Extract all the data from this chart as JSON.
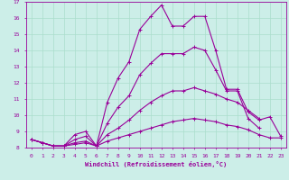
{
  "xlabel": "Windchill (Refroidissement éolien,°C)",
  "xlim": [
    -0.5,
    23.5
  ],
  "ylim": [
    8,
    17
  ],
  "yticks": [
    8,
    9,
    10,
    11,
    12,
    13,
    14,
    15,
    16,
    17
  ],
  "xticks": [
    0,
    1,
    2,
    3,
    4,
    5,
    6,
    7,
    8,
    9,
    10,
    11,
    12,
    13,
    14,
    15,
    16,
    17,
    18,
    19,
    20,
    21,
    22,
    23
  ],
  "bg_color": "#cceee8",
  "line_color": "#990099",
  "grid_color": "#aaddcc",
  "curves": [
    {
      "x": [
        0,
        1,
        2,
        3,
        4,
        5,
        6,
        7,
        8,
        9,
        10,
        11,
        12,
        13,
        14,
        15,
        16,
        17,
        18,
        19,
        20,
        21,
        22,
        23
      ],
      "y": [
        8.5,
        8.3,
        8.1,
        8.1,
        8.8,
        9.0,
        8.1,
        10.8,
        12.3,
        13.3,
        15.3,
        16.1,
        16.8,
        15.5,
        15.5,
        16.1,
        16.1,
        14.0,
        11.6,
        11.6,
        10.2,
        9.7,
        9.9,
        8.7
      ]
    },
    {
      "x": [
        0,
        1,
        2,
        3,
        4,
        5,
        6,
        7,
        8,
        9,
        10,
        11,
        12,
        13,
        14,
        15,
        16,
        17,
        18,
        19,
        20,
        21
      ],
      "y": [
        8.5,
        8.3,
        8.1,
        8.1,
        8.5,
        8.7,
        8.1,
        9.5,
        10.5,
        11.2,
        12.5,
        13.2,
        13.8,
        13.8,
        13.8,
        14.2,
        14.0,
        12.8,
        11.5,
        11.5,
        9.8,
        9.2
      ]
    },
    {
      "x": [
        0,
        1,
        2,
        3,
        4,
        5,
        6,
        7,
        8,
        9,
        10,
        11,
        12,
        13,
        14,
        15,
        16,
        17,
        18,
        19,
        20,
        21
      ],
      "y": [
        8.5,
        8.3,
        8.1,
        8.1,
        8.3,
        8.4,
        8.1,
        8.8,
        9.2,
        9.7,
        10.3,
        10.8,
        11.2,
        11.5,
        11.5,
        11.7,
        11.5,
        11.3,
        11.0,
        10.8,
        10.3,
        9.8
      ]
    },
    {
      "x": [
        0,
        1,
        2,
        3,
        4,
        5,
        6,
        7,
        8,
        9,
        10,
        11,
        12,
        13,
        14,
        15,
        16,
        17,
        18,
        19,
        20,
        21,
        22,
        23
      ],
      "y": [
        8.5,
        8.3,
        8.1,
        8.1,
        8.2,
        8.3,
        8.1,
        8.4,
        8.6,
        8.8,
        9.0,
        9.2,
        9.4,
        9.6,
        9.7,
        9.8,
        9.7,
        9.6,
        9.4,
        9.3,
        9.1,
        8.8,
        8.6,
        8.6
      ]
    }
  ]
}
